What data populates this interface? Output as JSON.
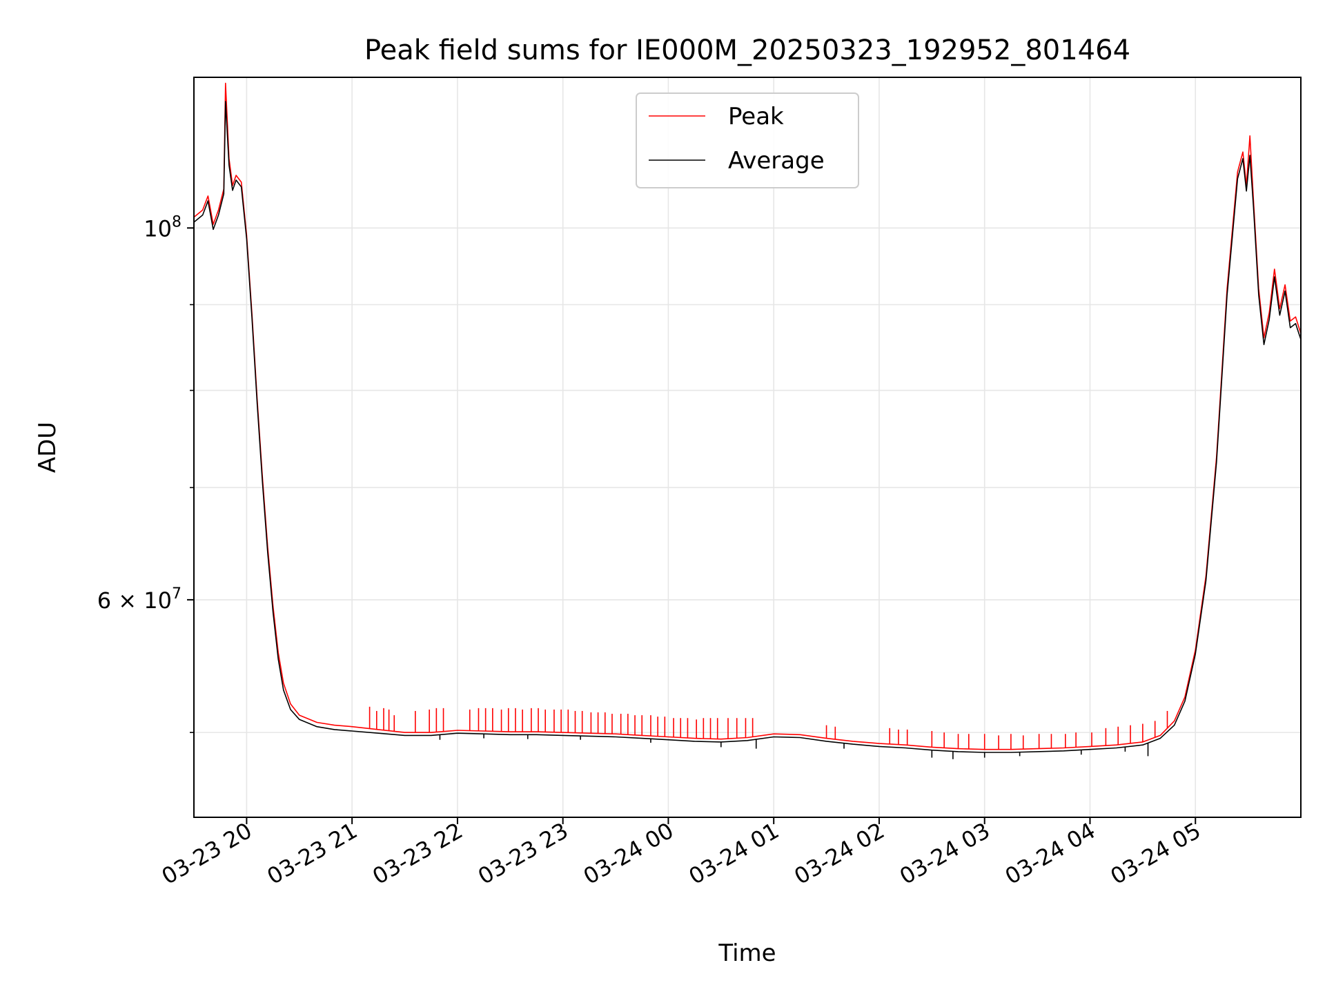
{
  "chart_data": {
    "type": "line",
    "title": "Peak field sums for IE000M_20250323_192952_801464",
    "xlabel": "Time",
    "ylabel": "ADU",
    "y_scale": "log",
    "ylim": [
      44500000,
      123000000
    ],
    "xlim": [
      "2025-03-23 19:30",
      "2025-03-24 06:00"
    ],
    "grid": true,
    "legend_position": "upper-center",
    "x_ticks": [
      {
        "value": "2025-03-23 20:00",
        "label": "03-23 20"
      },
      {
        "value": "2025-03-23 21:00",
        "label": "03-23 21"
      },
      {
        "value": "2025-03-23 22:00",
        "label": "03-23 22"
      },
      {
        "value": "2025-03-23 23:00",
        "label": "03-23 23"
      },
      {
        "value": "2025-03-24 00:00",
        "label": "03-24 00"
      },
      {
        "value": "2025-03-24 01:00",
        "label": "03-24 01"
      },
      {
        "value": "2025-03-24 02:00",
        "label": "03-24 02"
      },
      {
        "value": "2025-03-24 03:00",
        "label": "03-24 03"
      },
      {
        "value": "2025-03-24 04:00",
        "label": "03-24 04"
      },
      {
        "value": "2025-03-24 05:00",
        "label": "03-24 05"
      }
    ],
    "y_major_ticks": [
      {
        "value": 100000000,
        "mantissa": "",
        "base": "10",
        "exp": "8"
      },
      {
        "value": 60000000,
        "mantissa": "6 × ",
        "base": "10",
        "exp": "7"
      }
    ],
    "y_minor_ticks": [
      50000000,
      70000000,
      80000000,
      90000000
    ],
    "series": [
      {
        "name": "Peak",
        "color": "#ff0000",
        "points": [
          [
            "2025-03-23 19:30",
            101500000
          ],
          [
            "2025-03-23 19:35",
            102500000
          ],
          [
            "2025-03-23 19:38",
            104500000
          ],
          [
            "2025-03-23 19:41",
            100500000
          ],
          [
            "2025-03-23 19:44",
            102500000
          ],
          [
            "2025-03-23 19:47",
            105500000
          ],
          [
            "2025-03-23 19:48",
            122000000
          ],
          [
            "2025-03-23 19:50",
            110000000
          ],
          [
            "2025-03-23 19:52",
            106000000
          ],
          [
            "2025-03-23 19:54",
            107500000
          ],
          [
            "2025-03-23 19:57",
            106500000
          ],
          [
            "2025-03-23 20:00",
            99000000
          ],
          [
            "2025-03-23 20:03",
            89000000
          ],
          [
            "2025-03-23 20:06",
            79000000
          ],
          [
            "2025-03-23 20:09",
            71000000
          ],
          [
            "2025-03-23 20:12",
            64500000
          ],
          [
            "2025-03-23 20:15",
            59500000
          ],
          [
            "2025-03-23 20:18",
            55800000
          ],
          [
            "2025-03-23 20:21",
            53500000
          ],
          [
            "2025-03-23 20:25",
            52000000
          ],
          [
            "2025-03-23 20:30",
            51200000
          ],
          [
            "2025-03-23 20:40",
            50700000
          ],
          [
            "2025-03-23 20:50",
            50500000
          ],
          [
            "2025-03-23 21:00",
            50400000
          ],
          [
            "2025-03-23 21:15",
            50200000
          ],
          [
            "2025-03-23 21:30",
            50000000
          ],
          [
            "2025-03-23 21:45",
            50000000
          ],
          [
            "2025-03-23 22:00",
            50150000
          ],
          [
            "2025-03-23 22:15",
            50100000
          ],
          [
            "2025-03-23 22:30",
            50050000
          ],
          [
            "2025-03-23 22:45",
            50050000
          ],
          [
            "2025-03-23 23:00",
            50000000
          ],
          [
            "2025-03-23 23:15",
            49950000
          ],
          [
            "2025-03-23 23:30",
            49900000
          ],
          [
            "2025-03-23 23:45",
            49800000
          ],
          [
            "2025-03-24 00:00",
            49700000
          ],
          [
            "2025-03-24 00:15",
            49600000
          ],
          [
            "2025-03-24 00:30",
            49550000
          ],
          [
            "2025-03-24 00:45",
            49650000
          ],
          [
            "2025-03-24 01:00",
            49900000
          ],
          [
            "2025-03-24 01:15",
            49850000
          ],
          [
            "2025-03-24 01:30",
            49600000
          ],
          [
            "2025-03-24 01:45",
            49400000
          ],
          [
            "2025-03-24 02:00",
            49250000
          ],
          [
            "2025-03-24 02:15",
            49150000
          ],
          [
            "2025-03-24 02:30",
            49000000
          ],
          [
            "2025-03-24 02:45",
            48900000
          ],
          [
            "2025-03-24 03:00",
            48850000
          ],
          [
            "2025-03-24 03:15",
            48850000
          ],
          [
            "2025-03-24 03:30",
            48900000
          ],
          [
            "2025-03-24 03:45",
            48950000
          ],
          [
            "2025-03-24 04:00",
            49050000
          ],
          [
            "2025-03-24 04:15",
            49150000
          ],
          [
            "2025-03-24 04:30",
            49350000
          ],
          [
            "2025-03-24 04:40",
            49800000
          ],
          [
            "2025-03-24 04:48",
            50800000
          ],
          [
            "2025-03-24 04:54",
            52500000
          ],
          [
            "2025-03-24 05:00",
            56000000
          ],
          [
            "2025-03-24 05:06",
            62000000
          ],
          [
            "2025-03-24 05:12",
            73000000
          ],
          [
            "2025-03-24 05:18",
            92000000
          ],
          [
            "2025-03-24 05:24",
            108000000
          ],
          [
            "2025-03-24 05:27",
            111000000
          ],
          [
            "2025-03-24 05:29",
            106000000
          ],
          [
            "2025-03-24 05:31",
            113500000
          ],
          [
            "2025-03-24 05:33",
            104000000
          ],
          [
            "2025-03-24 05:36",
            92000000
          ],
          [
            "2025-03-24 05:39",
            86000000
          ],
          [
            "2025-03-24 05:42",
            89000000
          ],
          [
            "2025-03-24 05:45",
            94500000
          ],
          [
            "2025-03-24 05:48",
            89500000
          ],
          [
            "2025-03-24 05:51",
            92500000
          ],
          [
            "2025-03-24 05:54",
            88000000
          ],
          [
            "2025-03-24 05:57",
            88500000
          ],
          [
            "2025-03-24 06:00",
            86500000
          ]
        ]
      },
      {
        "name": "Average",
        "color": "#000000",
        "points": [
          [
            "2025-03-23 19:30",
            100800000
          ],
          [
            "2025-03-23 19:35",
            101800000
          ],
          [
            "2025-03-23 19:38",
            103800000
          ],
          [
            "2025-03-23 19:41",
            99800000
          ],
          [
            "2025-03-23 19:44",
            101800000
          ],
          [
            "2025-03-23 19:47",
            104800000
          ],
          [
            "2025-03-23 19:48",
            119000000
          ],
          [
            "2025-03-23 19:50",
            109000000
          ],
          [
            "2025-03-23 19:52",
            105300000
          ],
          [
            "2025-03-23 19:54",
            106800000
          ],
          [
            "2025-03-23 19:57",
            105800000
          ],
          [
            "2025-03-23 20:00",
            98500000
          ],
          [
            "2025-03-23 20:03",
            88500000
          ],
          [
            "2025-03-23 20:06",
            78500000
          ],
          [
            "2025-03-23 20:09",
            70500000
          ],
          [
            "2025-03-23 20:12",
            64000000
          ],
          [
            "2025-03-23 20:15",
            59000000
          ],
          [
            "2025-03-23 20:18",
            55300000
          ],
          [
            "2025-03-23 20:21",
            53000000
          ],
          [
            "2025-03-23 20:25",
            51600000
          ],
          [
            "2025-03-23 20:30",
            50900000
          ],
          [
            "2025-03-23 20:40",
            50400000
          ],
          [
            "2025-03-23 20:50",
            50200000
          ],
          [
            "2025-03-23 21:00",
            50100000
          ],
          [
            "2025-03-23 21:15",
            49950000
          ],
          [
            "2025-03-23 21:30",
            49800000
          ],
          [
            "2025-03-23 21:45",
            49800000
          ],
          [
            "2025-03-23 22:00",
            49950000
          ],
          [
            "2025-03-23 22:15",
            49900000
          ],
          [
            "2025-03-23 22:30",
            49850000
          ],
          [
            "2025-03-23 22:45",
            49850000
          ],
          [
            "2025-03-23 23:00",
            49800000
          ],
          [
            "2025-03-23 23:15",
            49750000
          ],
          [
            "2025-03-23 23:30",
            49700000
          ],
          [
            "2025-03-23 23:45",
            49600000
          ],
          [
            "2025-03-24 00:00",
            49500000
          ],
          [
            "2025-03-24 00:15",
            49400000
          ],
          [
            "2025-03-24 00:30",
            49350000
          ],
          [
            "2025-03-24 00:45",
            49450000
          ],
          [
            "2025-03-24 01:00",
            49700000
          ],
          [
            "2025-03-24 01:15",
            49650000
          ],
          [
            "2025-03-24 01:30",
            49400000
          ],
          [
            "2025-03-24 01:45",
            49200000
          ],
          [
            "2025-03-24 02:00",
            49050000
          ],
          [
            "2025-03-24 02:15",
            48950000
          ],
          [
            "2025-03-24 02:30",
            48800000
          ],
          [
            "2025-03-24 02:45",
            48700000
          ],
          [
            "2025-03-24 03:00",
            48650000
          ],
          [
            "2025-03-24 03:15",
            48650000
          ],
          [
            "2025-03-24 03:30",
            48700000
          ],
          [
            "2025-03-24 03:45",
            48750000
          ],
          [
            "2025-03-24 04:00",
            48850000
          ],
          [
            "2025-03-24 04:15",
            48950000
          ],
          [
            "2025-03-24 04:30",
            49150000
          ],
          [
            "2025-03-24 04:40",
            49600000
          ],
          [
            "2025-03-24 04:48",
            50500000
          ],
          [
            "2025-03-24 04:54",
            52200000
          ],
          [
            "2025-03-24 05:00",
            55700000
          ],
          [
            "2025-03-24 05:06",
            61600000
          ],
          [
            "2025-03-24 05:12",
            72500000
          ],
          [
            "2025-03-24 05:18",
            91200000
          ],
          [
            "2025-03-24 05:24",
            107000000
          ],
          [
            "2025-03-24 05:27",
            110000000
          ],
          [
            "2025-03-24 05:29",
            105200000
          ],
          [
            "2025-03-24 05:31",
            110500000
          ],
          [
            "2025-03-24 05:33",
            103000000
          ],
          [
            "2025-03-24 05:36",
            91200000
          ],
          [
            "2025-03-24 05:39",
            85200000
          ],
          [
            "2025-03-24 05:42",
            88200000
          ],
          [
            "2025-03-24 05:45",
            93500000
          ],
          [
            "2025-03-24 05:48",
            88700000
          ],
          [
            "2025-03-24 05:51",
            91700000
          ],
          [
            "2025-03-24 05:54",
            87200000
          ],
          [
            "2025-03-24 05:57",
            87700000
          ],
          [
            "2025-03-24 06:00",
            85800000
          ]
        ]
      }
    ],
    "peak_spikes": [
      [
        "2025-03-23 21:10",
        51800000
      ],
      [
        "2025-03-23 21:14",
        51500000
      ],
      [
        "2025-03-23 21:18",
        51700000
      ],
      [
        "2025-03-23 21:21",
        51600000
      ],
      [
        "2025-03-23 21:24",
        51200000
      ],
      [
        "2025-03-23 21:36",
        51500000
      ],
      [
        "2025-03-23 21:44",
        51600000
      ],
      [
        "2025-03-23 21:48",
        51700000
      ],
      [
        "2025-03-23 21:52",
        51700000
      ],
      [
        "2025-03-23 22:07",
        51600000
      ],
      [
        "2025-03-23 22:12",
        51700000
      ],
      [
        "2025-03-23 22:16",
        51700000
      ],
      [
        "2025-03-23 22:20",
        51700000
      ],
      [
        "2025-03-23 22:25",
        51600000
      ],
      [
        "2025-03-23 22:29",
        51700000
      ],
      [
        "2025-03-23 22:33",
        51700000
      ],
      [
        "2025-03-23 22:37",
        51600000
      ],
      [
        "2025-03-23 22:42",
        51700000
      ],
      [
        "2025-03-23 22:46",
        51700000
      ],
      [
        "2025-03-23 22:50",
        51600000
      ],
      [
        "2025-03-23 22:55",
        51600000
      ],
      [
        "2025-03-23 22:59",
        51600000
      ],
      [
        "2025-03-23 23:03",
        51600000
      ],
      [
        "2025-03-23 23:07",
        51500000
      ],
      [
        "2025-03-23 23:11",
        51500000
      ],
      [
        "2025-03-23 23:16",
        51400000
      ],
      [
        "2025-03-23 23:20",
        51400000
      ],
      [
        "2025-03-23 23:24",
        51400000
      ],
      [
        "2025-03-23 23:28",
        51300000
      ],
      [
        "2025-03-23 23:33",
        51300000
      ],
      [
        "2025-03-23 23:37",
        51300000
      ],
      [
        "2025-03-23 23:41",
        51200000
      ],
      [
        "2025-03-23 23:45",
        51200000
      ],
      [
        "2025-03-23 23:50",
        51200000
      ],
      [
        "2025-03-23 23:54",
        51100000
      ],
      [
        "2025-03-23 23:58",
        51100000
      ],
      [
        "2025-03-24 00:03",
        51000000
      ],
      [
        "2025-03-24 00:07",
        51000000
      ],
      [
        "2025-03-24 00:11",
        51000000
      ],
      [
        "2025-03-24 00:16",
        50900000
      ],
      [
        "2025-03-24 00:20",
        51000000
      ],
      [
        "2025-03-24 00:24",
        51000000
      ],
      [
        "2025-03-24 00:28",
        51000000
      ],
      [
        "2025-03-24 00:34",
        51000000
      ],
      [
        "2025-03-24 00:39",
        51000000
      ],
      [
        "2025-03-24 00:44",
        51000000
      ],
      [
        "2025-03-24 00:48",
        51000000
      ],
      [
        "2025-03-24 01:30",
        50500000
      ],
      [
        "2025-03-24 01:35",
        50400000
      ],
      [
        "2025-03-24 02:06",
        50300000
      ],
      [
        "2025-03-24 02:11",
        50200000
      ],
      [
        "2025-03-24 02:16",
        50200000
      ],
      [
        "2025-03-24 02:30",
        50100000
      ],
      [
        "2025-03-24 02:37",
        50000000
      ],
      [
        "2025-03-24 02:45",
        49900000
      ],
      [
        "2025-03-24 02:51",
        49900000
      ],
      [
        "2025-03-24 03:00",
        49900000
      ],
      [
        "2025-03-24 03:08",
        49800000
      ],
      [
        "2025-03-24 03:15",
        49900000
      ],
      [
        "2025-03-24 03:22",
        49800000
      ],
      [
        "2025-03-24 03:31",
        49900000
      ],
      [
        "2025-03-24 03:38",
        49900000
      ],
      [
        "2025-03-24 03:46",
        49900000
      ],
      [
        "2025-03-24 03:52",
        50000000
      ],
      [
        "2025-03-24 04:01",
        50000000
      ],
      [
        "2025-03-24 04:09",
        50300000
      ],
      [
        "2025-03-24 04:16",
        50400000
      ],
      [
        "2025-03-24 04:23",
        50500000
      ],
      [
        "2025-03-24 04:30",
        50600000
      ],
      [
        "2025-03-24 04:37",
        50800000
      ],
      [
        "2025-03-24 04:44",
        51500000
      ]
    ],
    "average_dips": [
      [
        "2025-03-23 21:50",
        49500000
      ],
      [
        "2025-03-23 22:15",
        49600000
      ],
      [
        "2025-03-23 22:40",
        49550000
      ],
      [
        "2025-03-23 23:10",
        49500000
      ],
      [
        "2025-03-23 23:50",
        49300000
      ],
      [
        "2025-03-24 00:30",
        49000000
      ],
      [
        "2025-03-24 00:50",
        48900000
      ],
      [
        "2025-03-24 01:40",
        48900000
      ],
      [
        "2025-03-24 02:30",
        48300000
      ],
      [
        "2025-03-24 02:42",
        48200000
      ],
      [
        "2025-03-24 03:00",
        48300000
      ],
      [
        "2025-03-24 03:20",
        48400000
      ],
      [
        "2025-03-24 03:55",
        48500000
      ],
      [
        "2025-03-24 04:20",
        48700000
      ],
      [
        "2025-03-24 04:33",
        48400000
      ]
    ],
    "legend": [
      {
        "label": "Peak",
        "color": "#ff0000"
      },
      {
        "label": "Average",
        "color": "#000000"
      }
    ]
  }
}
